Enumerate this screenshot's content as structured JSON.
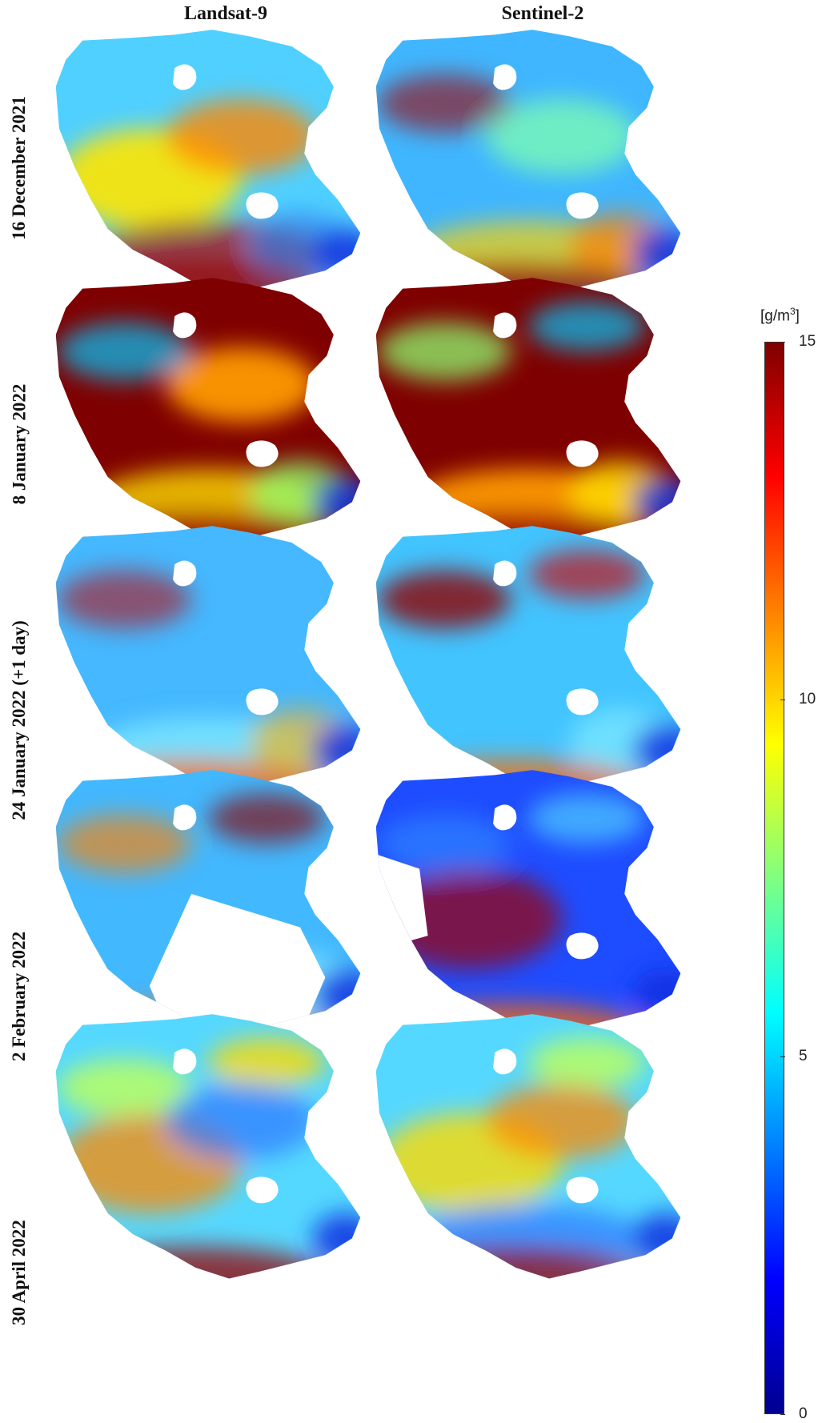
{
  "columns": [
    "Landsat-9",
    "Sentinel-2"
  ],
  "rows": [
    {
      "label": "16 December 2021",
      "landsat_style": "mixed-high",
      "sentinel_style": "mixed-mid"
    },
    {
      "label": "8 January 2022",
      "landsat_style": "very-high",
      "sentinel_style": "very-high"
    },
    {
      "label": "24 January 2022 (+1 day)",
      "landsat_style": "low",
      "sentinel_style": "low-with-plumes"
    },
    {
      "label": "2 February 2022",
      "landsat_style": "low-partial",
      "sentinel_style": "very-low-partial"
    },
    {
      "label": "30 April 2022",
      "landsat_style": "mid-gradient",
      "sentinel_style": "mid-gradient"
    }
  ],
  "colorbar": {
    "unit_prefix": "[g/m",
    "unit_power": "3",
    "unit_suffix": "]",
    "ticks": [
      "15",
      "10",
      "5",
      "0"
    ],
    "tick_values": [
      15,
      10,
      5,
      0
    ],
    "min": 0,
    "max": 15,
    "colormap": "jet",
    "colors": [
      "#7f0000",
      "#ff0000",
      "#ff8000",
      "#ffff00",
      "#80ff80",
      "#00ffff",
      "#0080ff",
      "#0000ff",
      "#00008f"
    ]
  }
}
